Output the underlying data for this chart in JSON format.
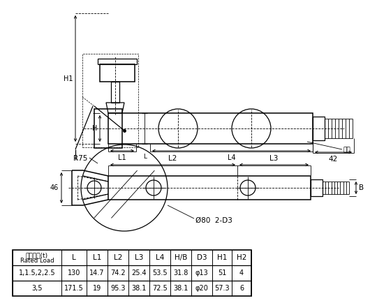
{
  "bg_color": "#ffffff",
  "line_color": "#000000",
  "table_headers": [
    "额定载荷(t)\nRated Load",
    "L",
    "L1",
    "L2",
    "L3",
    "L4",
    "H/B",
    "D3",
    "H1",
    "H2"
  ],
  "table_row1": [
    "1,1.5,2,2.5",
    "130",
    "14.7",
    "74.2",
    "25.4",
    "53.5",
    "31.8",
    "φ13",
    "51",
    "4"
  ],
  "table_row2": [
    "3,5",
    "171.5",
    "19",
    "95.3",
    "38.1",
    "72.5",
    "38.1",
    "φ20",
    "57.3",
    "6"
  ],
  "dim_42": "42",
  "dim_R75": "R75",
  "dim_46": "46",
  "dim_80": "Ø80  2-D3",
  "label_H1": "H1",
  "label_H": "H",
  "label_L1": "L1",
  "label_L": "L",
  "label_L2": "L2",
  "label_L3": "L3",
  "label_L4": "L4",
  "label_B": "B",
  "label_gasket": "垫片"
}
